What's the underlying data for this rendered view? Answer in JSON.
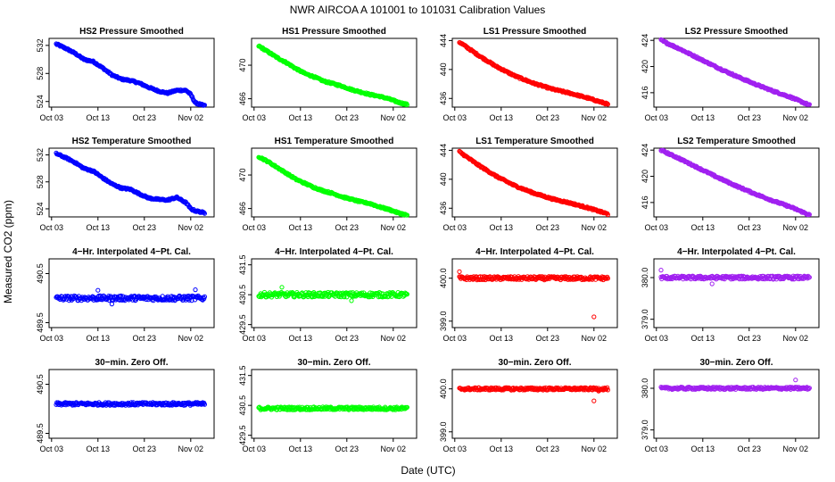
{
  "figure": {
    "title": "NWR   AIRCOA A   101001 to 101031   Calibration Values",
    "xlabel": "Date (UTC)",
    "ylabel": "Measured CO2 (ppm)"
  },
  "x_ticks": [
    "Oct 03",
    "Oct 13",
    "Oct 23",
    "Nov 02"
  ],
  "colors": {
    "blue": "#0000ff",
    "green": "#00ff00",
    "red": "#ff0000",
    "purple": "#a020f0"
  },
  "chart_data": [
    {
      "type": "scatter",
      "title": "HS2 Pressure Smoothed",
      "color": "blue",
      "ylim": [
        523.2,
        533.0
      ],
      "yticks": [
        {
          "v": 524,
          "label": "524"
        },
        {
          "v": 528,
          "label": "528"
        },
        {
          "v": 532,
          "label": "532"
        }
      ],
      "trend": [
        [
          0,
          532.2
        ],
        [
          2,
          531.6
        ],
        [
          4,
          530.9
        ],
        [
          6,
          530.0
        ],
        [
          8,
          529.7
        ],
        [
          10,
          528.8
        ],
        [
          12,
          527.8
        ],
        [
          14,
          527.2
        ],
        [
          16,
          527.0
        ],
        [
          18,
          526.6
        ],
        [
          20,
          526.0
        ],
        [
          22,
          525.5
        ],
        [
          24,
          525.2
        ],
        [
          26,
          525.6
        ],
        [
          28,
          525.6
        ],
        [
          29,
          525.0
        ],
        [
          30,
          523.8
        ],
        [
          32,
          523.4
        ]
      ]
    },
    {
      "type": "scatter",
      "title": "HS1 Pressure Smoothed",
      "color": "green",
      "ylim": [
        465.0,
        473.2
      ],
      "yticks": [
        {
          "v": 466,
          "label": "466"
        },
        {
          "v": 470,
          "label": "470"
        }
      ],
      "trend": [
        [
          0,
          472.3
        ],
        [
          2,
          471.6
        ],
        [
          4,
          470.9
        ],
        [
          6,
          470.3
        ],
        [
          8,
          469.6
        ],
        [
          10,
          469.0
        ],
        [
          12,
          468.6
        ],
        [
          14,
          468.1
        ],
        [
          16,
          467.8
        ],
        [
          18,
          467.5
        ],
        [
          20,
          467.1
        ],
        [
          22,
          466.8
        ],
        [
          24,
          466.5
        ],
        [
          26,
          466.3
        ],
        [
          28,
          466.0
        ],
        [
          30,
          465.6
        ],
        [
          32,
          465.3
        ]
      ]
    },
    {
      "type": "scatter",
      "title": "LS1 Pressure Smoothed",
      "color": "red",
      "ylim": [
        434.8,
        444.3
      ],
      "yticks": [
        {
          "v": 436,
          "label": "436"
        },
        {
          "v": 440,
          "label": "440"
        },
        {
          "v": 444,
          "label": "444"
        }
      ],
      "trend": [
        [
          0,
          443.8
        ],
        [
          4,
          442.0
        ],
        [
          8,
          440.4
        ],
        [
          12,
          439.1
        ],
        [
          16,
          438.1
        ],
        [
          20,
          437.3
        ],
        [
          24,
          436.7
        ],
        [
          28,
          436.0
        ],
        [
          32,
          435.2
        ]
      ]
    },
    {
      "type": "scatter",
      "title": "LS2 Pressure Smoothed",
      "color": "purple",
      "ylim": [
        413.8,
        424.3
      ],
      "yticks": [
        {
          "v": 416,
          "label": "416"
        },
        {
          "v": 420,
          "label": "420"
        },
        {
          "v": 424,
          "label": "424"
        }
      ],
      "trend": [
        [
          0,
          424.0
        ],
        [
          4,
          422.7
        ],
        [
          8,
          421.3
        ],
        [
          12,
          419.9
        ],
        [
          16,
          418.6
        ],
        [
          20,
          417.4
        ],
        [
          24,
          416.3
        ],
        [
          28,
          415.3
        ],
        [
          32,
          414.1
        ]
      ]
    },
    {
      "type": "scatter",
      "title": "HS2 Temperature Smoothed",
      "color": "blue",
      "ylim": [
        522.8,
        533.0
      ],
      "yticks": [
        {
          "v": 524,
          "label": "524"
        },
        {
          "v": 528,
          "label": "528"
        },
        {
          "v": 532,
          "label": "532"
        }
      ],
      "trend": [
        [
          0,
          532.2
        ],
        [
          2,
          531.6
        ],
        [
          4,
          530.9
        ],
        [
          6,
          530.0
        ],
        [
          8,
          529.6
        ],
        [
          10,
          528.6
        ],
        [
          12,
          527.7
        ],
        [
          14,
          527.1
        ],
        [
          16,
          526.9
        ],
        [
          18,
          526.2
        ],
        [
          20,
          525.6
        ],
        [
          22,
          525.4
        ],
        [
          24,
          525.3
        ],
        [
          26,
          525.7
        ],
        [
          28,
          524.9
        ],
        [
          29,
          524.0
        ],
        [
          30,
          523.7
        ],
        [
          32,
          523.4
        ]
      ]
    },
    {
      "type": "scatter",
      "title": "HS1 Temperature Smoothed",
      "color": "green",
      "ylim": [
        465.0,
        473.2
      ],
      "yticks": [
        {
          "v": 466,
          "label": "466"
        },
        {
          "v": 470,
          "label": "470"
        }
      ],
      "trend": [
        [
          0,
          472.2
        ],
        [
          2,
          471.6
        ],
        [
          4,
          470.9
        ],
        [
          6,
          470.2
        ],
        [
          8,
          469.5
        ],
        [
          10,
          469.0
        ],
        [
          12,
          468.5
        ],
        [
          14,
          468.1
        ],
        [
          16,
          467.8
        ],
        [
          18,
          467.4
        ],
        [
          20,
          467.1
        ],
        [
          22,
          466.8
        ],
        [
          24,
          466.6
        ],
        [
          26,
          466.2
        ],
        [
          28,
          465.9
        ],
        [
          30,
          465.5
        ],
        [
          32,
          465.2
        ]
      ]
    },
    {
      "type": "scatter",
      "title": "LS1 Temperature Smoothed",
      "color": "red",
      "ylim": [
        434.8,
        444.3
      ],
      "yticks": [
        {
          "v": 436,
          "label": "436"
        },
        {
          "v": 440,
          "label": "440"
        },
        {
          "v": 444,
          "label": "444"
        }
      ],
      "trend": [
        [
          0,
          443.8
        ],
        [
          4,
          442.0
        ],
        [
          8,
          440.4
        ],
        [
          12,
          439.1
        ],
        [
          16,
          438.1
        ],
        [
          20,
          437.3
        ],
        [
          24,
          436.7
        ],
        [
          28,
          436.0
        ],
        [
          32,
          435.2
        ]
      ]
    },
    {
      "type": "scatter",
      "title": "LS2 Temperature Smoothed",
      "color": "purple",
      "ylim": [
        413.8,
        424.3
      ],
      "yticks": [
        {
          "v": 416,
          "label": "416"
        },
        {
          "v": 420,
          "label": "420"
        },
        {
          "v": 424,
          "label": "424"
        }
      ],
      "trend": [
        [
          0,
          424.0
        ],
        [
          4,
          422.7
        ],
        [
          8,
          421.3
        ],
        [
          12,
          419.9
        ],
        [
          16,
          418.6
        ],
        [
          20,
          417.4
        ],
        [
          24,
          416.3
        ],
        [
          28,
          415.3
        ],
        [
          32,
          414.1
        ]
      ]
    },
    {
      "type": "scatter",
      "title": "4−Hr. Interpolated 4−Pt. Cal.",
      "color": "blue",
      "ylim": [
        489.4,
        490.8
      ],
      "yticks": [
        {
          "v": 489.5,
          "label": "489.5"
        },
        {
          "v": 490.5,
          "label": "490.5"
        }
      ],
      "trend": [
        [
          0,
          490.0
        ],
        [
          32,
          490.0
        ]
      ],
      "noise": 0.05,
      "outliers": [
        [
          9,
          490.16
        ],
        [
          30,
          490.17
        ],
        [
          12,
          489.88
        ]
      ]
    },
    {
      "type": "scatter",
      "title": "4−Hr. Interpolated 4−Pt. Cal.",
      "color": "green",
      "ylim": [
        429.4,
        431.7
      ],
      "yticks": [
        {
          "v": 429.5,
          "label": "429.5"
        },
        {
          "v": 430.5,
          "label": "430.5"
        },
        {
          "v": 431.5,
          "label": "431.5"
        }
      ],
      "trend": [
        [
          0,
          430.5
        ],
        [
          32,
          430.5
        ]
      ],
      "noise": 0.08,
      "outliers": [
        [
          5,
          430.75
        ],
        [
          20,
          430.3
        ]
      ]
    },
    {
      "type": "scatter",
      "title": "4−Hr. Interpolated 4−Pt. Cal.",
      "color": "red",
      "ylim": [
        398.85,
        400.45
      ],
      "yticks": [
        {
          "v": 399.0,
          "label": "399.0"
        },
        {
          "v": 400.0,
          "label": "400.0"
        }
      ],
      "trend": [
        [
          0,
          400.0
        ],
        [
          32,
          400.0
        ]
      ],
      "noise": 0.04,
      "outliers": [
        [
          0,
          400.15
        ],
        [
          29,
          399.1
        ]
      ]
    },
    {
      "type": "scatter",
      "title": "4−Hr. Interpolated 4−Pt. Cal.",
      "color": "purple",
      "ylim": [
        378.8,
        380.45
      ],
      "yticks": [
        {
          "v": 379.0,
          "label": "379.0"
        },
        {
          "v": 380.0,
          "label": "380.0"
        }
      ],
      "trend": [
        [
          0,
          380.0
        ],
        [
          32,
          380.0
        ]
      ],
      "noise": 0.04,
      "outliers": [
        [
          0,
          380.18
        ],
        [
          11,
          379.85
        ]
      ]
    },
    {
      "type": "scatter",
      "title": "30−min. Zero Off.",
      "color": "blue",
      "ylim": [
        489.4,
        490.8
      ],
      "yticks": [
        {
          "v": 489.5,
          "label": "489.5"
        },
        {
          "v": 490.5,
          "label": "490.5"
        }
      ],
      "trend": [
        [
          0,
          490.1
        ],
        [
          32,
          490.1
        ]
      ],
      "noise": 0.03,
      "outliers": []
    },
    {
      "type": "scatter",
      "title": "30−min. Zero Off.",
      "color": "green",
      "ylim": [
        429.4,
        431.7
      ],
      "yticks": [
        {
          "v": 429.5,
          "label": "429.5"
        },
        {
          "v": 430.5,
          "label": "430.5"
        },
        {
          "v": 431.5,
          "label": "431.5"
        }
      ],
      "trend": [
        [
          0,
          430.4
        ],
        [
          32,
          430.4
        ]
      ],
      "noise": 0.05,
      "outliers": []
    },
    {
      "type": "scatter",
      "title": "30−min. Zero Off.",
      "color": "red",
      "ylim": [
        398.85,
        400.45
      ],
      "yticks": [
        {
          "v": 399.0,
          "label": "399.0"
        },
        {
          "v": 400.0,
          "label": "400.0"
        }
      ],
      "trend": [
        [
          0,
          400.0
        ],
        [
          32,
          400.0
        ]
      ],
      "noise": 0.03,
      "outliers": [
        [
          29,
          399.72
        ],
        [
          30,
          399.95
        ]
      ]
    },
    {
      "type": "scatter",
      "title": "30−min. Zero Off.",
      "color": "purple",
      "ylim": [
        378.8,
        380.45
      ],
      "yticks": [
        {
          "v": 379.0,
          "label": "379.0"
        },
        {
          "v": 380.0,
          "label": "380.0"
        }
      ],
      "trend": [
        [
          0,
          380.0
        ],
        [
          32,
          380.0
        ]
      ],
      "noise": 0.03,
      "outliers": [
        [
          29,
          380.2
        ]
      ]
    }
  ]
}
